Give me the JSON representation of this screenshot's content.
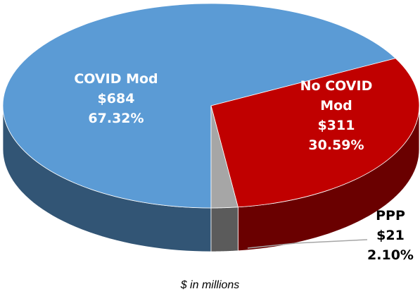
{
  "chart_data": {
    "type": "pie3d",
    "categories": [
      "COVID Mod",
      "No COVID Mod",
      "PPP"
    ],
    "values": [
      684,
      311,
      21
    ],
    "value_labels": [
      "$684",
      "$311",
      "$21"
    ],
    "percentages": [
      67.32,
      30.59,
      2.1
    ],
    "percentage_labels": [
      "67.32%",
      "30.59%",
      "2.10%"
    ],
    "colors": [
      "#5b9bd5",
      "#c00000",
      "#a6a6a6"
    ],
    "caption": "$ in millions"
  }
}
